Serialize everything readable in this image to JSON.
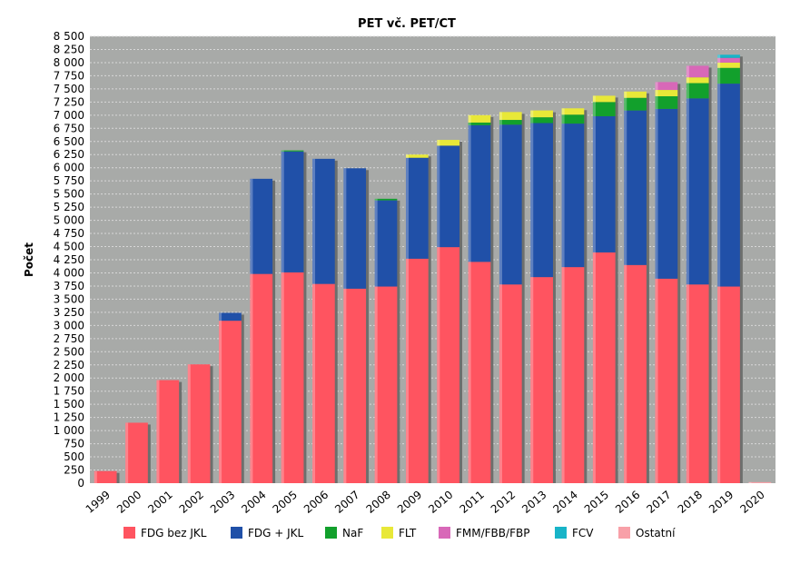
{
  "chart_data": {
    "type": "bar",
    "stacked": true,
    "title": "PET vč. PET/CT",
    "xlabel": "",
    "ylabel": "Počet",
    "ylim": [
      0,
      8500
    ],
    "ytick_step": 250,
    "grid": true,
    "legend_position": "bottom",
    "categories": [
      "1999",
      "2000",
      "2001",
      "2002",
      "2003",
      "2004",
      "2005",
      "2006",
      "2007",
      "2008",
      "2009",
      "2010",
      "2011",
      "2012",
      "2013",
      "2014",
      "2015",
      "2016",
      "2017",
      "2018",
      "2019",
      "2020"
    ],
    "series": [
      {
        "name": "FDG bez JKL",
        "color": "#ff5460",
        "values": [
          230,
          1150,
          1960,
          2260,
          3090,
          3980,
          4010,
          3790,
          3700,
          3740,
          4270,
          4490,
          4210,
          3780,
          3920,
          4110,
          4390,
          4150,
          3890,
          3780,
          3740,
          0
        ]
      },
      {
        "name": "FDG + JKL",
        "color": "#2050a8",
        "values": [
          0,
          0,
          0,
          0,
          150,
          1810,
          2300,
          2380,
          2290,
          1640,
          1920,
          1930,
          2600,
          3040,
          2930,
          2730,
          2590,
          2940,
          3230,
          3540,
          3860,
          0
        ]
      },
      {
        "name": "NaF",
        "color": "#12a02c",
        "values": [
          0,
          0,
          0,
          0,
          0,
          0,
          20,
          0,
          0,
          30,
          0,
          0,
          50,
          90,
          110,
          170,
          270,
          240,
          240,
          290,
          300,
          0
        ]
      },
      {
        "name": "FLT",
        "color": "#e8e838",
        "values": [
          0,
          0,
          0,
          0,
          0,
          0,
          0,
          0,
          0,
          0,
          60,
          110,
          140,
          150,
          130,
          120,
          120,
          120,
          120,
          110,
          100,
          0
        ]
      },
      {
        "name": "FMM/FBB/FBP",
        "color": "#d868b8",
        "values": [
          0,
          0,
          0,
          0,
          0,
          0,
          0,
          0,
          0,
          0,
          0,
          0,
          0,
          0,
          0,
          0,
          0,
          0,
          150,
          220,
          90,
          0
        ]
      },
      {
        "name": "FCV",
        "color": "#18b4c8",
        "values": [
          0,
          0,
          0,
          0,
          0,
          0,
          0,
          0,
          0,
          0,
          0,
          0,
          0,
          0,
          0,
          0,
          0,
          0,
          0,
          0,
          60,
          0
        ]
      },
      {
        "name": "Ostatní",
        "color": "#f8a0a8",
        "values": [
          0,
          0,
          0,
          0,
          0,
          0,
          0,
          0,
          0,
          0,
          0,
          0,
          0,
          0,
          0,
          0,
          0,
          0,
          0,
          0,
          0,
          20
        ]
      }
    ]
  }
}
